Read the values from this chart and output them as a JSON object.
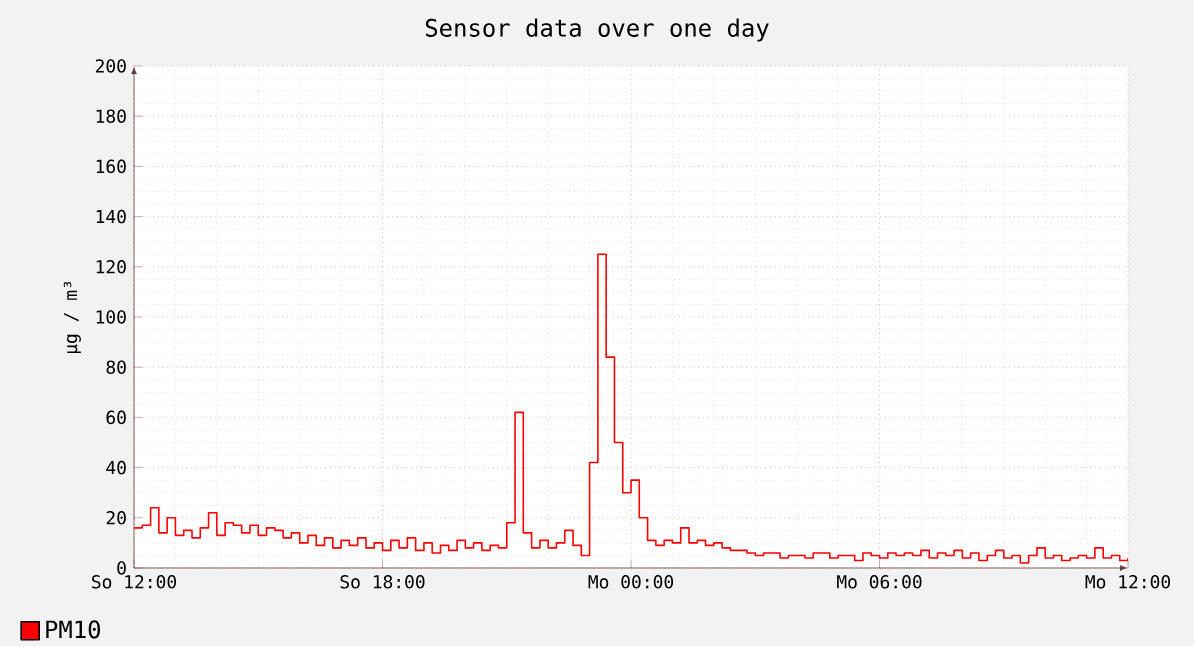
{
  "chart_data": {
    "type": "step",
    "title": "Sensor data over one day",
    "ylabel": "µg / m³",
    "categories": [
      "So 12:00",
      null,
      null,
      null,
      null,
      null,
      null,
      null,
      null,
      null,
      null,
      null,
      null,
      null,
      null,
      null,
      null,
      null,
      null,
      null,
      null,
      null,
      null,
      null,
      null,
      null,
      null,
      null,
      null,
      null,
      "So 18:00",
      null,
      null,
      null,
      null,
      null,
      null,
      null,
      null,
      null,
      null,
      null,
      null,
      null,
      null,
      null,
      null,
      null,
      null,
      null,
      null,
      null,
      null,
      null,
      null,
      null,
      null,
      null,
      null,
      null,
      "Mo 00:00",
      null,
      null,
      null,
      null,
      null,
      null,
      null,
      null,
      null,
      null,
      null,
      null,
      null,
      null,
      null,
      null,
      null,
      null,
      null,
      null,
      null,
      null,
      null,
      null,
      null,
      null,
      null,
      null,
      null,
      "Mo 06:00",
      null,
      null,
      null,
      null,
      null,
      null,
      null,
      null,
      null,
      null,
      null,
      null,
      null,
      null,
      null,
      null,
      null,
      null,
      null,
      null,
      null,
      null,
      null,
      null,
      null,
      null,
      null,
      null,
      null,
      "Mo 12:00"
    ],
    "series": [
      {
        "name": "PM10",
        "color": "#ff0000",
        "values": [
          16,
          17,
          24,
          14,
          20,
          13,
          15,
          12,
          16,
          22,
          13,
          18,
          17,
          14,
          17,
          13,
          16,
          15,
          12,
          14,
          10,
          13,
          9,
          12,
          8,
          11,
          9,
          12,
          8,
          10,
          7,
          11,
          8,
          12,
          7,
          10,
          6,
          9,
          7,
          11,
          8,
          10,
          7,
          9,
          8,
          18,
          62,
          14,
          8,
          11,
          8,
          10,
          15,
          9,
          5,
          42,
          125,
          84,
          50,
          30,
          35,
          20,
          11,
          9,
          11,
          10,
          16,
          10,
          11,
          9,
          10,
          8,
          7,
          7,
          6,
          5,
          6,
          6,
          4,
          5,
          5,
          4,
          6,
          6,
          4,
          5,
          5,
          3,
          6,
          5,
          4,
          6,
          5,
          6,
          5,
          7,
          4,
          6,
          5,
          7,
          4,
          6,
          3,
          5,
          7,
          4,
          5,
          2,
          5,
          8,
          4,
          5,
          3,
          4,
          5,
          4,
          8,
          4,
          5,
          3,
          4
        ]
      }
    ],
    "ylim": [
      0,
      200
    ],
    "yticks": [
      0,
      20,
      40,
      60,
      80,
      100,
      120,
      140,
      160,
      180,
      200
    ],
    "grid": true,
    "legend": "bottom left"
  }
}
